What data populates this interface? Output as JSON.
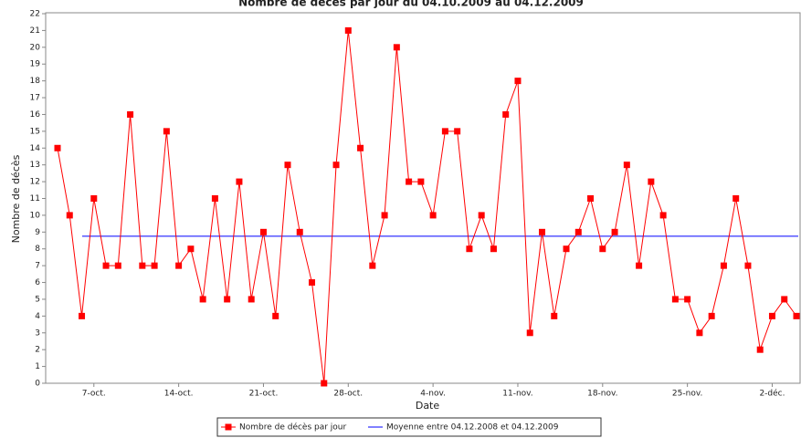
{
  "chart_data": {
    "type": "line",
    "title": "Nombre de décès par jour du 04.10.2009 au 04.12.2009",
    "x_label": "Date",
    "y_label": "Nombre de décès",
    "categories": [
      null,
      null,
      null,
      "7-oct.",
      null,
      null,
      null,
      null,
      null,
      null,
      "14-oct.",
      null,
      null,
      null,
      null,
      null,
      null,
      "21-oct.",
      null,
      null,
      null,
      null,
      null,
      null,
      "28-oct.",
      null,
      null,
      null,
      null,
      null,
      null,
      "4-nov.",
      null,
      null,
      null,
      null,
      null,
      null,
      "11-nov.",
      null,
      null,
      null,
      null,
      null,
      null,
      "18-nov.",
      null,
      null,
      null,
      null,
      null,
      null,
      "25-nov.",
      null,
      null,
      null,
      null,
      null,
      null,
      "2-déc.",
      null,
      null
    ],
    "series": [
      {
        "name": "Nombre de décès par jour",
        "color": "#ff0000",
        "values": [
          14,
          10,
          4,
          11,
          7,
          7,
          16,
          7,
          7,
          15,
          7,
          8,
          5,
          11,
          5,
          12,
          5,
          9,
          4,
          13,
          9,
          6,
          0,
          13,
          21,
          14,
          7,
          10,
          20,
          12,
          12,
          10,
          15,
          15,
          8,
          10,
          8,
          16,
          18,
          3,
          9,
          4,
          8,
          9,
          11,
          8,
          9,
          13,
          7,
          12,
          10,
          5,
          5,
          3,
          4,
          7,
          11,
          7,
          2,
          4,
          5,
          4
        ]
      }
    ],
    "mean": {
      "name": "Moyenne entre 04.12.2008 et 04.12.2009",
      "color": "#0000ff",
      "value": 8.75
    },
    "ylim": [
      0,
      22
    ],
    "yticks": [
      0,
      1,
      2,
      3,
      4,
      5,
      6,
      7,
      8,
      9,
      10,
      11,
      12,
      13,
      14,
      15,
      16,
      17,
      18,
      19,
      20,
      21,
      22
    ]
  }
}
